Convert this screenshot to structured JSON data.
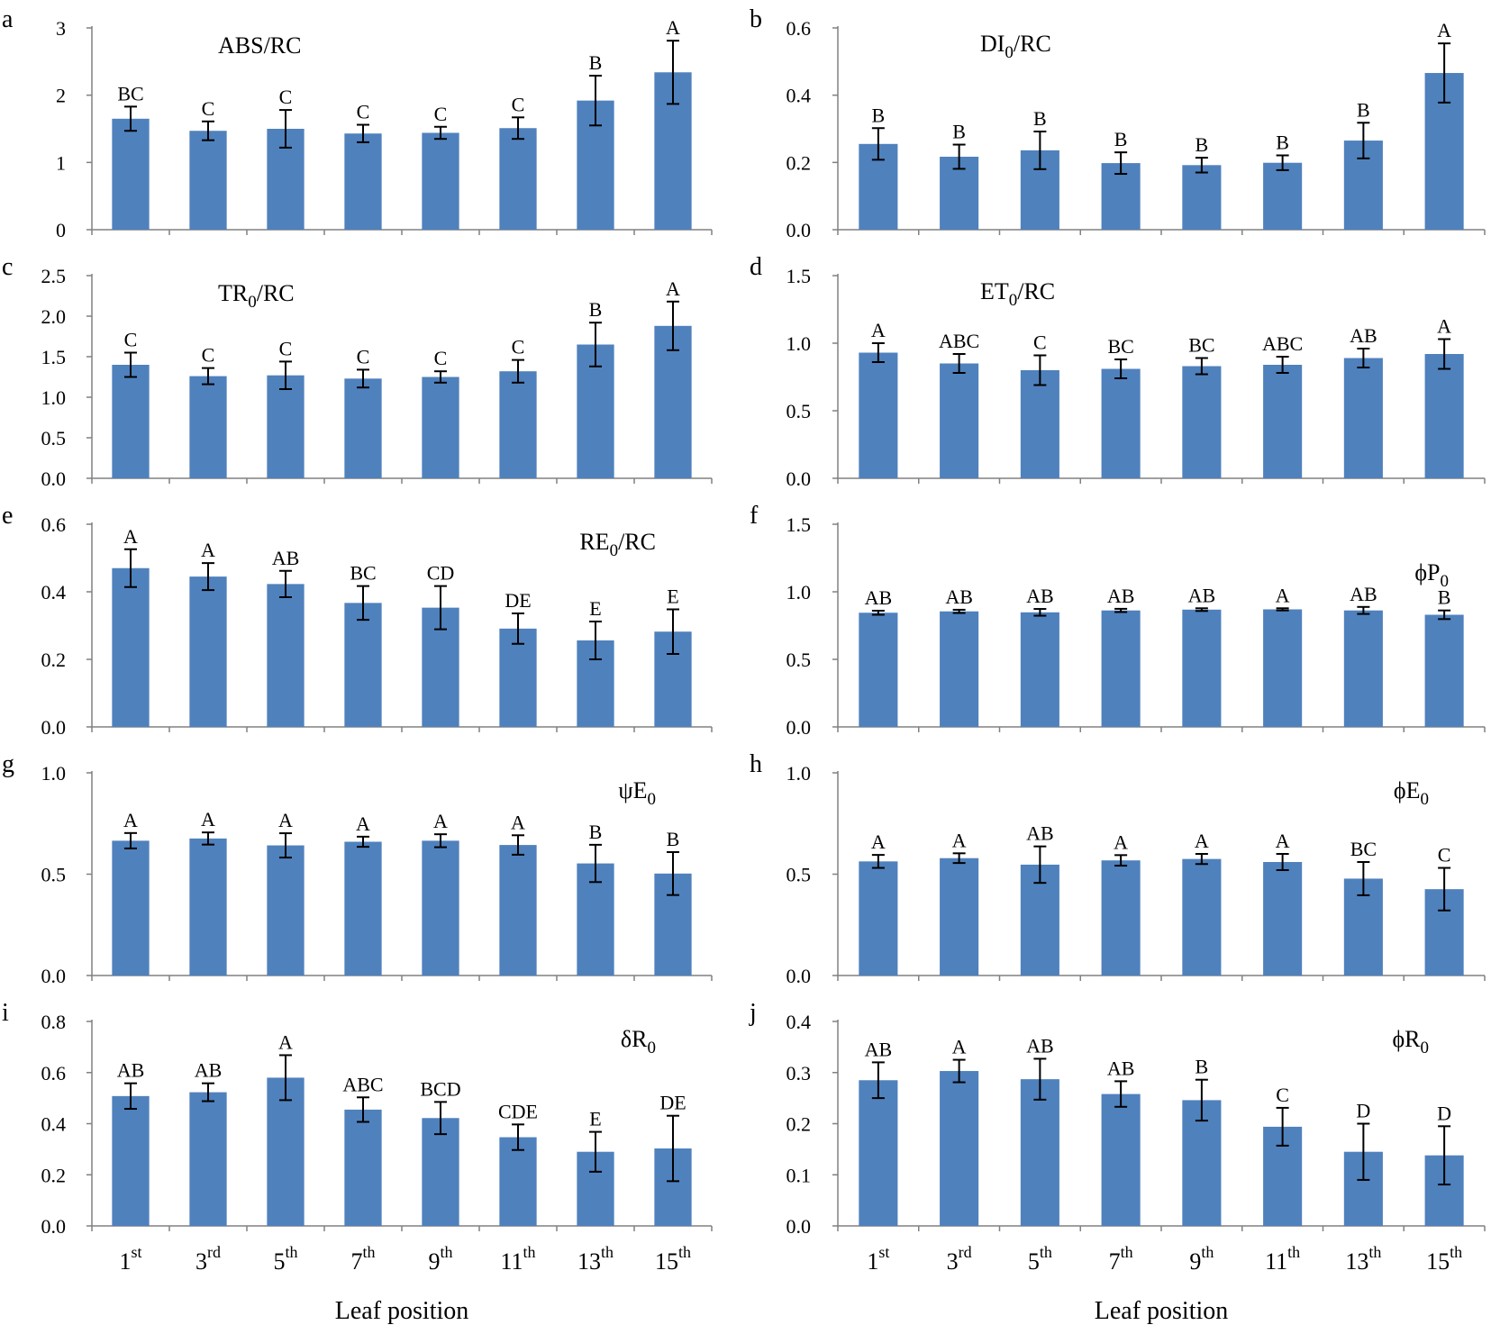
{
  "colors": {
    "bar": "#4f81bd",
    "axis": "#808080",
    "error": "#000000"
  },
  "x_label": "Leaf position",
  "categories": [
    {
      "num": "1",
      "sup": "st"
    },
    {
      "num": "3",
      "sup": "rd"
    },
    {
      "num": "5",
      "sup": "th"
    },
    {
      "num": "7",
      "sup": "th"
    },
    {
      "num": "9",
      "sup": "th"
    },
    {
      "num": "11",
      "sup": "th"
    },
    {
      "num": "13",
      "sup": "th"
    },
    {
      "num": "15",
      "sup": "th"
    }
  ],
  "chart_data": [
    {
      "panel": "a",
      "type": "bar",
      "title": {
        "pre": "ABS/RC",
        "sub": "",
        "post": "",
        "position": "top-left"
      },
      "yticks": [
        "0",
        "1",
        "2",
        "3"
      ],
      "ylim": [
        0,
        3
      ],
      "values": [
        1.65,
        1.47,
        1.5,
        1.43,
        1.44,
        1.51,
        1.92,
        2.34
      ],
      "errors": [
        0.18,
        0.14,
        0.28,
        0.13,
        0.09,
        0.16,
        0.37,
        0.47
      ],
      "letters": [
        "BC",
        "C",
        "C",
        "C",
        "C",
        "C",
        "B",
        "A"
      ]
    },
    {
      "panel": "b",
      "type": "bar",
      "title": {
        "pre": "DI",
        "sub": "0",
        "post": "/RC",
        "position": "top-center"
      },
      "yticks": [
        "0.0",
        "0.2",
        "0.4",
        "0.6"
      ],
      "ylim": [
        0,
        0.6
      ],
      "values": [
        0.255,
        0.217,
        0.236,
        0.198,
        0.192,
        0.199,
        0.265,
        0.466
      ],
      "errors": [
        0.047,
        0.036,
        0.056,
        0.032,
        0.022,
        0.022,
        0.053,
        0.088
      ],
      "letters": [
        "B",
        "B",
        "B",
        "B",
        "B",
        "B",
        "B",
        "A"
      ]
    },
    {
      "panel": "c",
      "type": "bar",
      "title": {
        "pre": "TR",
        "sub": "0",
        "post": "/RC",
        "position": "top-left"
      },
      "yticks": [
        "0.0",
        "0.5",
        "1.0",
        "1.5",
        "2.0",
        "2.5"
      ],
      "ylim": [
        0,
        2.5
      ],
      "values": [
        1.4,
        1.26,
        1.27,
        1.23,
        1.25,
        1.32,
        1.65,
        1.88
      ],
      "errors": [
        0.15,
        0.1,
        0.17,
        0.11,
        0.07,
        0.14,
        0.27,
        0.3
      ],
      "letters": [
        "C",
        "C",
        "C",
        "C",
        "C",
        "C",
        "B",
        "A"
      ]
    },
    {
      "panel": "d",
      "type": "bar",
      "title": {
        "pre": "ET",
        "sub": "0",
        "post": "/RC",
        "position": "top-center"
      },
      "yticks": [
        "0.0",
        "0.5",
        "1.0",
        "1.5"
      ],
      "ylim": [
        0,
        1.5
      ],
      "values": [
        0.93,
        0.85,
        0.8,
        0.81,
        0.83,
        0.84,
        0.89,
        0.92
      ],
      "errors": [
        0.07,
        0.07,
        0.11,
        0.07,
        0.06,
        0.06,
        0.07,
        0.11
      ],
      "letters": [
        "A",
        "ABC",
        "C",
        "BC",
        "BC",
        "ABC",
        "AB",
        "A"
      ]
    },
    {
      "panel": "e",
      "type": "bar",
      "title": {
        "pre": "RE",
        "sub": "0",
        "post": "/RC",
        "position": "top-right"
      },
      "yticks": [
        "0.0",
        "0.2",
        "0.4",
        "0.6"
      ],
      "ylim": [
        0,
        0.6
      ],
      "values": [
        0.47,
        0.445,
        0.423,
        0.367,
        0.353,
        0.291,
        0.256,
        0.282
      ],
      "errors": [
        0.056,
        0.04,
        0.039,
        0.05,
        0.064,
        0.045,
        0.056,
        0.066
      ],
      "letters": [
        "A",
        "A",
        "AB",
        "BC",
        "CD",
        "DE",
        "E",
        "E"
      ]
    },
    {
      "panel": "f",
      "type": "bar",
      "title": {
        "pre": "ϕP",
        "sub": "0",
        "post": "",
        "position": "right"
      },
      "yticks": [
        "0.0",
        "0.5",
        "1.0",
        "1.5"
      ],
      "ylim": [
        0,
        1.5
      ],
      "values": [
        0.845,
        0.855,
        0.848,
        0.862,
        0.868,
        0.87,
        0.862,
        0.83
      ],
      "errors": [
        0.015,
        0.012,
        0.025,
        0.012,
        0.01,
        0.008,
        0.026,
        0.032
      ],
      "letters": [
        "AB",
        "AB",
        "AB",
        "AB",
        "AB",
        "A",
        "AB",
        "B"
      ]
    },
    {
      "panel": "g",
      "type": "bar",
      "title": {
        "pre": "ψE",
        "sub": "0",
        "post": "",
        "position": "top-right"
      },
      "yticks": [
        "0.0",
        "0.5",
        "1.0"
      ],
      "ylim": [
        0,
        1.0
      ],
      "values": [
        0.665,
        0.676,
        0.642,
        0.66,
        0.665,
        0.644,
        0.553,
        0.503
      ],
      "errors": [
        0.038,
        0.03,
        0.06,
        0.025,
        0.032,
        0.048,
        0.092,
        0.106
      ],
      "letters": [
        "A",
        "A",
        "A",
        "A",
        "A",
        "A",
        "B",
        "B"
      ]
    },
    {
      "panel": "h",
      "type": "bar",
      "title": {
        "pre": "ϕE",
        "sub": "0",
        "post": "",
        "position": "top-right"
      },
      "yticks": [
        "0.0",
        "0.5",
        "1.0"
      ],
      "ylim": [
        0,
        1.0
      ],
      "values": [
        0.563,
        0.579,
        0.547,
        0.568,
        0.575,
        0.56,
        0.478,
        0.426
      ],
      "errors": [
        0.032,
        0.024,
        0.09,
        0.026,
        0.025,
        0.04,
        0.082,
        0.105
      ],
      "letters": [
        "A",
        "A",
        "AB",
        "A",
        "A",
        "A",
        "BC",
        "C"
      ]
    },
    {
      "panel": "i",
      "type": "bar",
      "title": {
        "pre": "δR",
        "sub": "0",
        "post": "",
        "position": "top-right"
      },
      "yticks": [
        "0.0",
        "0.2",
        "0.4",
        "0.6",
        "0.8"
      ],
      "ylim": [
        0,
        0.8
      ],
      "values": [
        0.508,
        0.523,
        0.58,
        0.455,
        0.422,
        0.347,
        0.29,
        0.303
      ],
      "errors": [
        0.05,
        0.035,
        0.088,
        0.048,
        0.063,
        0.05,
        0.078,
        0.128
      ],
      "letters": [
        "AB",
        "AB",
        "A",
        "ABC",
        "BCD",
        "CDE",
        "E",
        "DE"
      ]
    },
    {
      "panel": "j",
      "type": "bar",
      "title": {
        "pre": "ϕR",
        "sub": "0",
        "post": "",
        "position": "top-right"
      },
      "yticks": [
        "0.0",
        "0.1",
        "0.2",
        "0.3",
        "0.4"
      ],
      "ylim": [
        0,
        0.4
      ],
      "values": [
        0.285,
        0.303,
        0.287,
        0.258,
        0.246,
        0.194,
        0.145,
        0.138
      ],
      "errors": [
        0.035,
        0.022,
        0.04,
        0.025,
        0.04,
        0.037,
        0.055,
        0.057
      ],
      "letters": [
        "AB",
        "A",
        "AB",
        "AB",
        "B",
        "C",
        "D",
        "D"
      ]
    }
  ]
}
